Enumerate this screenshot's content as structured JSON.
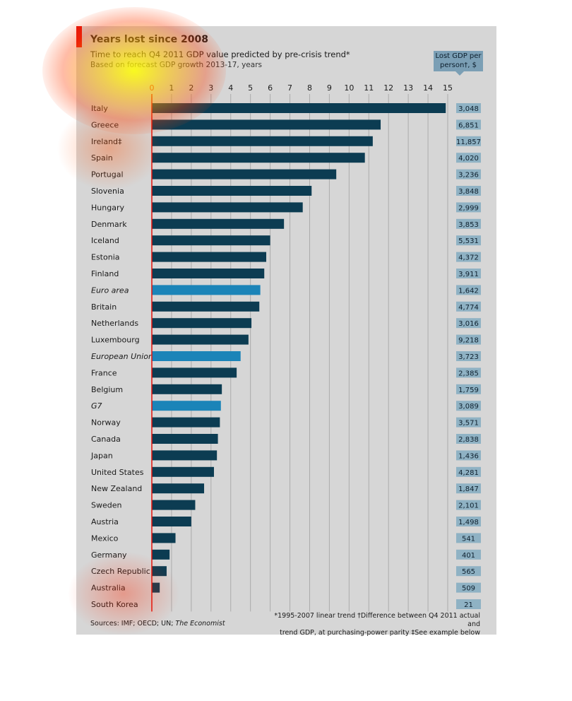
{
  "title": "Years lost since 2008",
  "subtitle": "Time to reach Q4 2011 GDP value predicted by pre-crisis trend*",
  "subtitle2": "Based on forecast GDP growth 2013-17, years",
  "gdp_header": "Lost GDP per person†, $",
  "sources_prefix": "Sources: IMF; OECD; UN; ",
  "sources_em": "The Economist",
  "footnote_line1": "*1995-2007 linear trend   †Difference between Q4 2011 actual and",
  "footnote_line2": "trend GDP, at purchasing-power parity   ‡See example below",
  "colors": {
    "bar": "#0c3c52",
    "bar_aggregate": "#1b84b8",
    "axis_red": "#e3120b",
    "gdp_box": "#8fb2c4"
  },
  "chart_data": {
    "type": "bar",
    "orientation": "horizontal",
    "xlim": [
      0,
      15
    ],
    "xticks": [
      "0",
      "1",
      "2",
      "3",
      "4",
      "5",
      "6",
      "7",
      "8",
      "9",
      "10",
      "11",
      "12",
      "13",
      "14",
      "15"
    ],
    "grid": true,
    "categories": [
      "Italy",
      "Greece",
      "Ireland‡",
      "Spain",
      "Portugal",
      "Slovenia",
      "Hungary",
      "Denmark",
      "Iceland",
      "Estonia",
      "Finland",
      "Euro area",
      "Britain",
      "Netherlands",
      "Luxembourg",
      "European Union",
      "France",
      "Belgium",
      "G7",
      "Norway",
      "Canada",
      "Japan",
      "United States",
      "New Zealand",
      "Sweden",
      "Austria",
      "Mexico",
      "Germany",
      "Czech Republic",
      "Australia",
      "South Korea"
    ],
    "values": [
      14.9,
      11.6,
      11.2,
      10.8,
      9.35,
      8.1,
      7.65,
      6.7,
      6.0,
      5.8,
      5.7,
      5.5,
      5.45,
      5.05,
      4.9,
      4.5,
      4.3,
      3.55,
      3.5,
      3.45,
      3.35,
      3.3,
      3.15,
      2.65,
      2.2,
      2.0,
      1.2,
      0.9,
      0.75,
      0.4,
      0.0
    ],
    "aggregate": [
      false,
      false,
      false,
      false,
      false,
      false,
      false,
      false,
      false,
      false,
      false,
      true,
      false,
      false,
      false,
      true,
      false,
      false,
      true,
      false,
      false,
      false,
      false,
      false,
      false,
      false,
      false,
      false,
      false,
      false,
      false
    ],
    "lost_gdp_per_person": [
      "3,048",
      "6,851",
      "11,857",
      "4,020",
      "3,236",
      "3,848",
      "2,999",
      "3,853",
      "5,531",
      "4,372",
      "3,911",
      "1,642",
      "4,774",
      "3,016",
      "9,218",
      "3,723",
      "2,385",
      "1,759",
      "3,089",
      "3,571",
      "2,838",
      "1,436",
      "4,281",
      "1,847",
      "2,101",
      "1,498",
      "541",
      "401",
      "565",
      "509",
      "21"
    ]
  }
}
